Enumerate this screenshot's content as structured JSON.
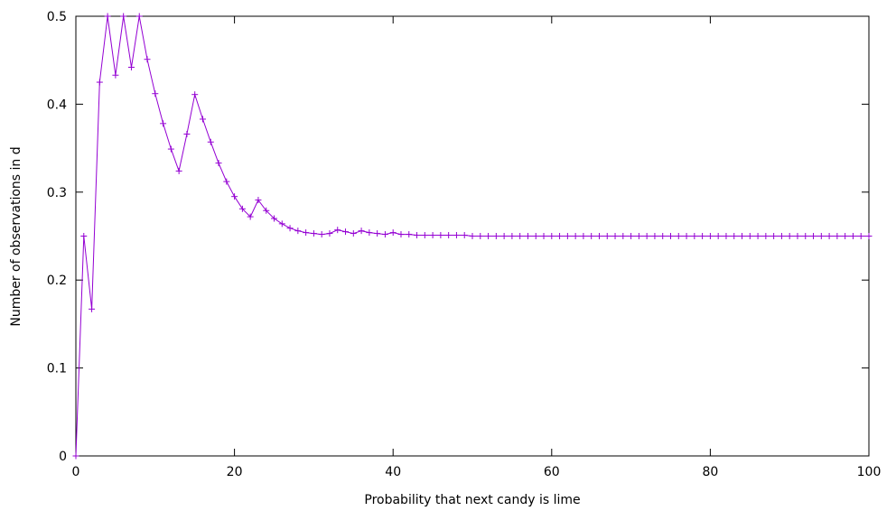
{
  "chart_data": {
    "type": "line",
    "xlabel": "Probability that next candy is lime",
    "ylabel": "Number of observations in d",
    "xlim": [
      0,
      100
    ],
    "ylim": [
      0,
      0.5
    ],
    "xticks": [
      0,
      20,
      40,
      60,
      80,
      100
    ],
    "yticks": [
      0,
      0.1,
      0.2,
      0.3,
      0.4,
      0.5
    ],
    "grid": false,
    "marker": "plus",
    "line_color": "#9400D3",
    "series": [
      {
        "x": [
          0,
          1,
          2,
          3,
          4,
          5,
          6,
          7,
          8,
          9,
          10,
          11,
          12,
          13,
          14,
          15,
          16,
          17,
          18,
          19,
          20,
          21,
          22,
          23,
          24,
          25,
          26,
          27,
          28,
          29,
          30,
          31,
          32,
          33,
          34,
          35,
          36,
          37,
          38,
          39,
          40,
          41,
          42,
          43,
          44,
          45,
          46,
          47,
          48,
          49,
          50,
          51,
          52,
          53,
          54,
          55,
          56,
          57,
          58,
          59,
          60,
          61,
          62,
          63,
          64,
          65,
          66,
          67,
          68,
          69,
          70,
          71,
          72,
          73,
          74,
          75,
          76,
          77,
          78,
          79,
          80,
          81,
          82,
          83,
          84,
          85,
          86,
          87,
          88,
          89,
          90,
          91,
          92,
          93,
          94,
          95,
          96,
          97,
          98,
          99,
          100
        ],
        "values": [
          0,
          0.25,
          0.167,
          0.425,
          0.5,
          0.433,
          0.5,
          0.442,
          0.5,
          0.451,
          0.412,
          0.378,
          0.349,
          0.324,
          0.366,
          0.411,
          0.383,
          0.357,
          0.333,
          0.312,
          0.295,
          0.281,
          0.272,
          0.291,
          0.279,
          0.27,
          0.264,
          0.259,
          0.256,
          0.254,
          0.253,
          0.252,
          0.253,
          0.257,
          0.255,
          0.253,
          0.256,
          0.254,
          0.253,
          0.252,
          0.254,
          0.252,
          0.252,
          0.251,
          0.251,
          0.251,
          0.251,
          0.251,
          0.251,
          0.251,
          0.25,
          0.25,
          0.25,
          0.25,
          0.25,
          0.25,
          0.25,
          0.25,
          0.25,
          0.25,
          0.25,
          0.25,
          0.25,
          0.25,
          0.25,
          0.25,
          0.25,
          0.25,
          0.25,
          0.25,
          0.25,
          0.25,
          0.25,
          0.25,
          0.25,
          0.25,
          0.25,
          0.25,
          0.25,
          0.25,
          0.25,
          0.25,
          0.25,
          0.25,
          0.25,
          0.25,
          0.25,
          0.25,
          0.25,
          0.25,
          0.25,
          0.25,
          0.25,
          0.25,
          0.25,
          0.25,
          0.25,
          0.25,
          0.25,
          0.25,
          0.25
        ]
      }
    ]
  }
}
